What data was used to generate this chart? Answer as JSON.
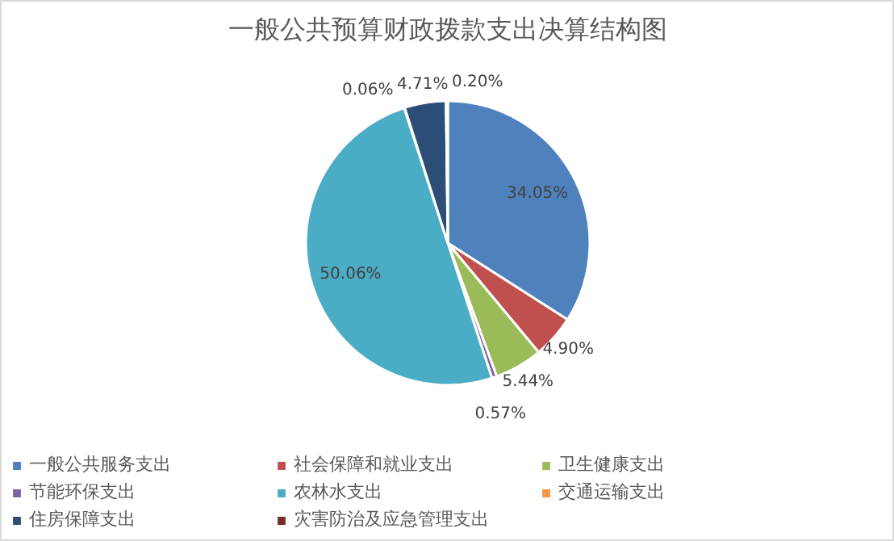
{
  "chart_data": {
    "type": "pie",
    "title": "一般公共预算财政拨款支出决算结构图",
    "categories": [
      "一般公共服务支出",
      "社会保障和就业支出",
      "卫生健康支出",
      "节能环保支出",
      "农林水支出",
      "交通运输支出",
      "住房保障支出",
      "灾害防治及应急管理支出"
    ],
    "values": [
      34.05,
      4.9,
      5.44,
      0.57,
      50.06,
      0.06,
      4.71,
      0.2
    ],
    "value_labels": [
      "34.05%",
      "4.90%",
      "5.44%",
      "0.57%",
      "50.06%",
      "0.06%",
      "4.71%",
      "0.20%"
    ],
    "colors": [
      "#4f81bd",
      "#c0504d",
      "#9bbb59",
      "#8064a2",
      "#4bacc6",
      "#f79646",
      "#2c4d75",
      "#772c2a"
    ],
    "legend": "bottom"
  }
}
